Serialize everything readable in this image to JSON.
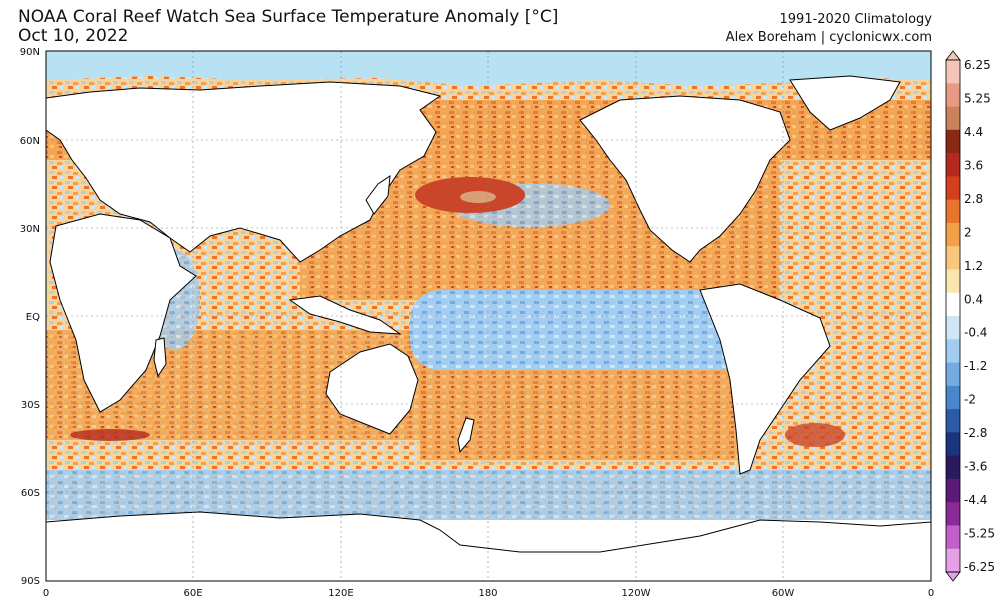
{
  "header": {
    "title": "NOAA Coral Reef Watch Sea Surface Temperature Anomaly [°C]",
    "date": "Oct 10, 2022",
    "climatology": "1991-2020 Climatology",
    "credit": "Alex Boreham | cyclonicwx.com"
  },
  "axes": {
    "lat_labels": [
      "90N",
      "60N",
      "30N",
      "EQ",
      "30S",
      "60S",
      "90S"
    ],
    "lon_labels": [
      "0",
      "60E",
      "120E",
      "180",
      "120W",
      "60W",
      "0"
    ]
  },
  "colorbar": {
    "labels": [
      "6.25",
      "5.25",
      "4.4",
      "3.6",
      "2.8",
      "2",
      "1.2",
      "0.4",
      "-0.4",
      "-1.2",
      "-2",
      "-2.8",
      "-3.6",
      "-4.4",
      "-5.25",
      "-6.25"
    ],
    "colors": [
      "#f2c6b8",
      "#e89a84",
      "#c9825a",
      "#8a2a14",
      "#b52a1e",
      "#d4401e",
      "#e8742e",
      "#f3a04a",
      "#f8c77c",
      "#fbe6b0",
      "#ffffff",
      "#cfe6f6",
      "#a3cdf0",
      "#74ace2",
      "#4a86cc",
      "#2c5aa6",
      "#1c347c",
      "#2a1a5e",
      "#5a1a78",
      "#8a2a96",
      "#c060c8",
      "#e6a0e6"
    ]
  },
  "palette": {
    "ocean_warm": "#f0a050",
    "ocean_hot": "#c9462a",
    "ocean_cool": "#a9d2f0",
    "ocean_cold": "#4a86cc",
    "ice": "#b8e2f4",
    "land": "#ffffff"
  }
}
